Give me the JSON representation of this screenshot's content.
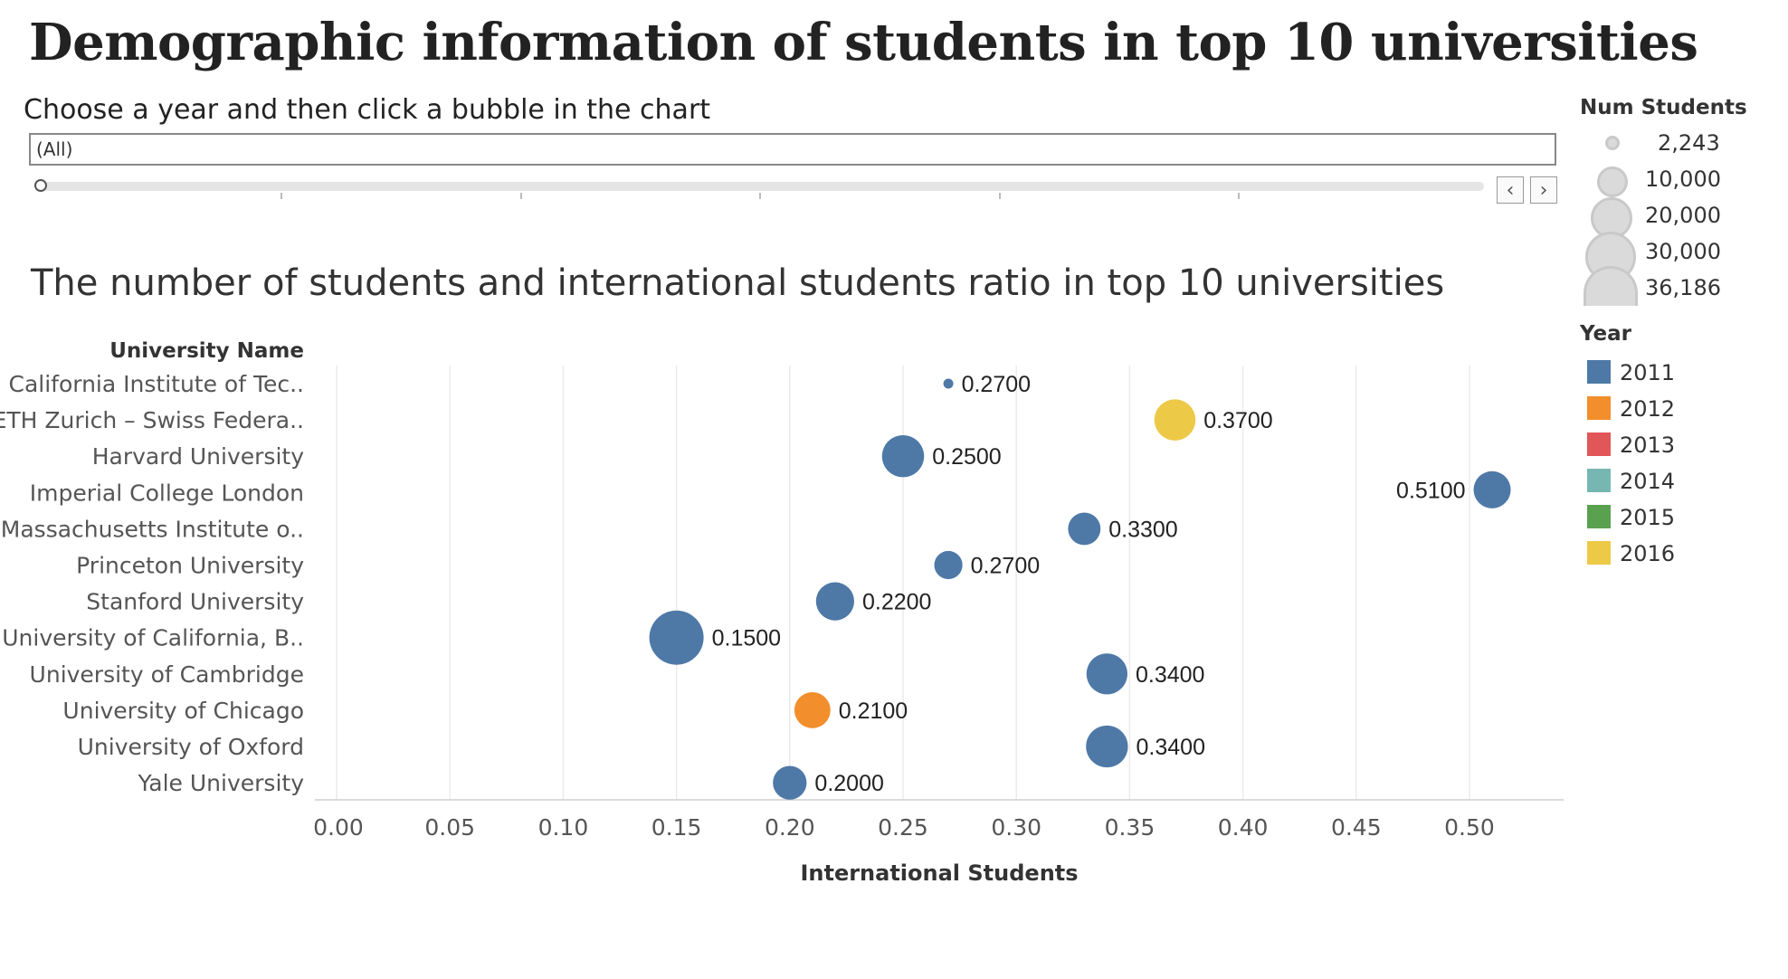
{
  "title": "Demographic information of students in top 10 universities",
  "filter": {
    "label": "Choose a year and then click a bubble in the chart",
    "value": "(All)"
  },
  "chart_title": "The number of students and international students ratio in top 10 universities",
  "chart_data": {
    "type": "scatter",
    "title": "The number of students and international students ratio in top 10 universities",
    "ylabel": "University Name",
    "xlabel": "International Students",
    "xlim": [
      0,
      0.54
    ],
    "xticks": [
      "0.00",
      "0.05",
      "0.10",
      "0.15",
      "0.20",
      "0.25",
      "0.30",
      "0.35",
      "0.40",
      "0.45",
      "0.50"
    ],
    "grid": true,
    "categories": [
      "California Institute of Tec..",
      "ETH Zurich – Swiss Federa..",
      "Harvard University",
      "Imperial College London",
      "Massachusetts Institute o..",
      "Princeton University",
      "Stanford University",
      "University of California, B..",
      "University of Cambridge",
      "University of Chicago",
      "University of Oxford",
      "Yale University"
    ],
    "points": [
      {
        "university": "California Institute of Tec..",
        "x": 0.27,
        "label": "0.2700",
        "students": 2243,
        "year": "2011"
      },
      {
        "university": "ETH Zurich – Swiss Federa..",
        "x": 0.37,
        "label": "0.3700",
        "students": 19000,
        "year": "2016"
      },
      {
        "university": "Harvard University",
        "x": 0.25,
        "label": "0.2500",
        "students": 20000,
        "year": "2011"
      },
      {
        "university": "Imperial College London",
        "x": 0.51,
        "label": "0.5100",
        "students": 15000,
        "year": "2011",
        "label_side": "left"
      },
      {
        "university": "Massachusetts Institute o..",
        "x": 0.33,
        "label": "0.3300",
        "students": 11000,
        "year": "2011"
      },
      {
        "university": "Princeton University",
        "x": 0.27,
        "label": "0.2700",
        "students": 8000,
        "year": "2011"
      },
      {
        "university": "Stanford University",
        "x": 0.22,
        "label": "0.2200",
        "students": 16000,
        "year": "2011"
      },
      {
        "university": "University of California, B..",
        "x": 0.15,
        "label": "0.1500",
        "students": 36186,
        "year": "2011"
      },
      {
        "university": "University of Cambridge",
        "x": 0.34,
        "label": "0.3400",
        "students": 18800,
        "year": "2011"
      },
      {
        "university": "University of Chicago",
        "x": 0.21,
        "label": "0.2100",
        "students": 14000,
        "year": "2012"
      },
      {
        "university": "University of Oxford",
        "x": 0.34,
        "label": "0.3400",
        "students": 19900,
        "year": "2011"
      },
      {
        "university": "Yale University",
        "x": 0.2,
        "label": "0.2000",
        "students": 12000,
        "year": "2011"
      }
    ]
  },
  "legend": {
    "size_title": "Num Students",
    "sizes": [
      {
        "value": 2243,
        "label": "2,243"
      },
      {
        "value": 10000,
        "label": "10,000"
      },
      {
        "value": 20000,
        "label": "20,000"
      },
      {
        "value": 30000,
        "label": "30,000"
      },
      {
        "value": 36186,
        "label": "36,186"
      }
    ],
    "year_title": "Year",
    "years": [
      {
        "label": "2011",
        "color": "#4e79a7"
      },
      {
        "label": "2012",
        "color": "#f28e2b"
      },
      {
        "label": "2013",
        "color": "#e15759"
      },
      {
        "label": "2014",
        "color": "#76b7b2"
      },
      {
        "label": "2015",
        "color": "#59a14f"
      },
      {
        "label": "2016",
        "color": "#edc948"
      }
    ]
  }
}
